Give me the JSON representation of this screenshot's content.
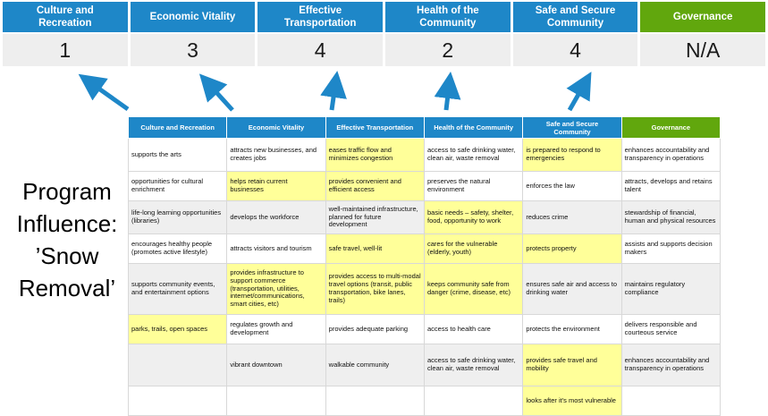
{
  "colors": {
    "header_blue": "#1E87C8",
    "governance_green": "#61A70D",
    "highlight_yellow": "#FFFF99",
    "shaded_row_gray": "#EFEFEF",
    "score_cell_gray": "#EEEEEE",
    "arrow_blue": "#1E87C8"
  },
  "program_label": {
    "text": "Program\nInfluence:\n’Snow\nRemoval’"
  },
  "summary": {
    "columns": [
      {
        "label": "Culture and Recreation",
        "score": "1",
        "color": "#1E87C8"
      },
      {
        "label": "Economic Vitality",
        "score": "3",
        "color": "#1E87C8"
      },
      {
        "label": "Effective Transportation",
        "score": "4",
        "color": "#1E87C8"
      },
      {
        "label": "Health of the Community",
        "score": "2",
        "color": "#1E87C8"
      },
      {
        "label": "Safe and Secure Community",
        "score": "4",
        "color": "#1E87C8"
      },
      {
        "label": "Governance",
        "score": "N/A",
        "color": "#61A70D"
      }
    ]
  },
  "matrix": {
    "headers": [
      {
        "label": "Culture and Recreation",
        "color": "#1E87C8"
      },
      {
        "label": "Economic Vitality",
        "color": "#1E87C8"
      },
      {
        "label": "Effective Transportation",
        "color": "#1E87C8"
      },
      {
        "label": "Health of the Community",
        "color": "#1E87C8"
      },
      {
        "label": "Safe and Secure Community",
        "color": "#1E87C8"
      },
      {
        "label": "Governance",
        "color": "#61A70D"
      }
    ],
    "rows": [
      {
        "shaded": false,
        "cells": [
          {
            "t": "supports the arts",
            "h": false
          },
          {
            "t": "attracts new businesses, and creates jobs",
            "h": false
          },
          {
            "t": "eases traffic flow and minimizes congestion",
            "h": true
          },
          {
            "t": "access to safe drinking water, clean air, waste removal",
            "h": false
          },
          {
            "t": "is prepared to respond to emergencies",
            "h": true
          },
          {
            "t": "enhances accountability and transparency in operations",
            "h": false
          }
        ]
      },
      {
        "shaded": false,
        "cells": [
          {
            "t": "opportunities for cultural enrichment",
            "h": false
          },
          {
            "t": "helps retain current businesses",
            "h": true
          },
          {
            "t": "provides convenient and efficient access",
            "h": true
          },
          {
            "t": "preserves the natural environment",
            "h": false
          },
          {
            "t": "enforces the law",
            "h": false
          },
          {
            "t": "attracts, develops and retains talent",
            "h": false
          }
        ]
      },
      {
        "shaded": true,
        "cells": [
          {
            "t": "life-long learning opportunities (libraries)",
            "h": false
          },
          {
            "t": "develops the workforce",
            "h": false
          },
          {
            "t": "well-maintained infrastructure, planned for future development",
            "h": false
          },
          {
            "t": "basic needs – safety, shelter, food, opportunity to work",
            "h": true
          },
          {
            "t": "reduces crime",
            "h": false
          },
          {
            "t": "stewardship of financial, human and physical resources",
            "h": false
          }
        ]
      },
      {
        "shaded": false,
        "cells": [
          {
            "t": "encourages healthy people (promotes active lifestyle)",
            "h": false
          },
          {
            "t": "attracts visitors and tourism",
            "h": false
          },
          {
            "t": "safe travel, well-lit",
            "h": true
          },
          {
            "t": "cares for the vulnerable (elderly, youth)",
            "h": true
          },
          {
            "t": "protects property",
            "h": true
          },
          {
            "t": "assists and supports decision makers",
            "h": false
          }
        ]
      },
      {
        "shaded": true,
        "cells": [
          {
            "t": "supports community events, and entertainment options",
            "h": false
          },
          {
            "t": "provides infrastructure to support commerce (transportation, utilities, internet/communications, smart cities, etc)",
            "h": true
          },
          {
            "t": "provides access to multi-modal travel options (transit, public transportation, bike lanes, trails)",
            "h": true
          },
          {
            "t": "keeps community safe from danger (crime, disease, etc)",
            "h": true
          },
          {
            "t": "ensures safe air and access to drinking water",
            "h": false
          },
          {
            "t": "maintains regulatory compliance",
            "h": false
          }
        ]
      },
      {
        "shaded": false,
        "cells": [
          {
            "t": "parks, trails, open spaces",
            "h": true
          },
          {
            "t": "regulates growth and development",
            "h": false
          },
          {
            "t": "provides adequate parking",
            "h": false
          },
          {
            "t": "access to health care",
            "h": false
          },
          {
            "t": "protects the environment",
            "h": false
          },
          {
            "t": "delivers responsible and courteous service",
            "h": false
          }
        ]
      },
      {
        "shaded": true,
        "cells": [
          {
            "t": "",
            "h": false
          },
          {
            "t": "vibrant downtown",
            "h": false
          },
          {
            "t": "walkable community",
            "h": false
          },
          {
            "t": "access to safe drinking water, clean air, waste removal",
            "h": false
          },
          {
            "t": "provides safe travel and mobility",
            "h": true
          },
          {
            "t": "enhances accountability and transparency in operations",
            "h": false
          }
        ]
      },
      {
        "shaded": false,
        "cells": [
          {
            "t": "",
            "h": false
          },
          {
            "t": "",
            "h": false
          },
          {
            "t": "",
            "h": false
          },
          {
            "t": "",
            "h": false
          },
          {
            "t": "looks after it's most vulnerable",
            "h": true
          },
          {
            "t": "",
            "h": false
          }
        ]
      }
    ]
  }
}
